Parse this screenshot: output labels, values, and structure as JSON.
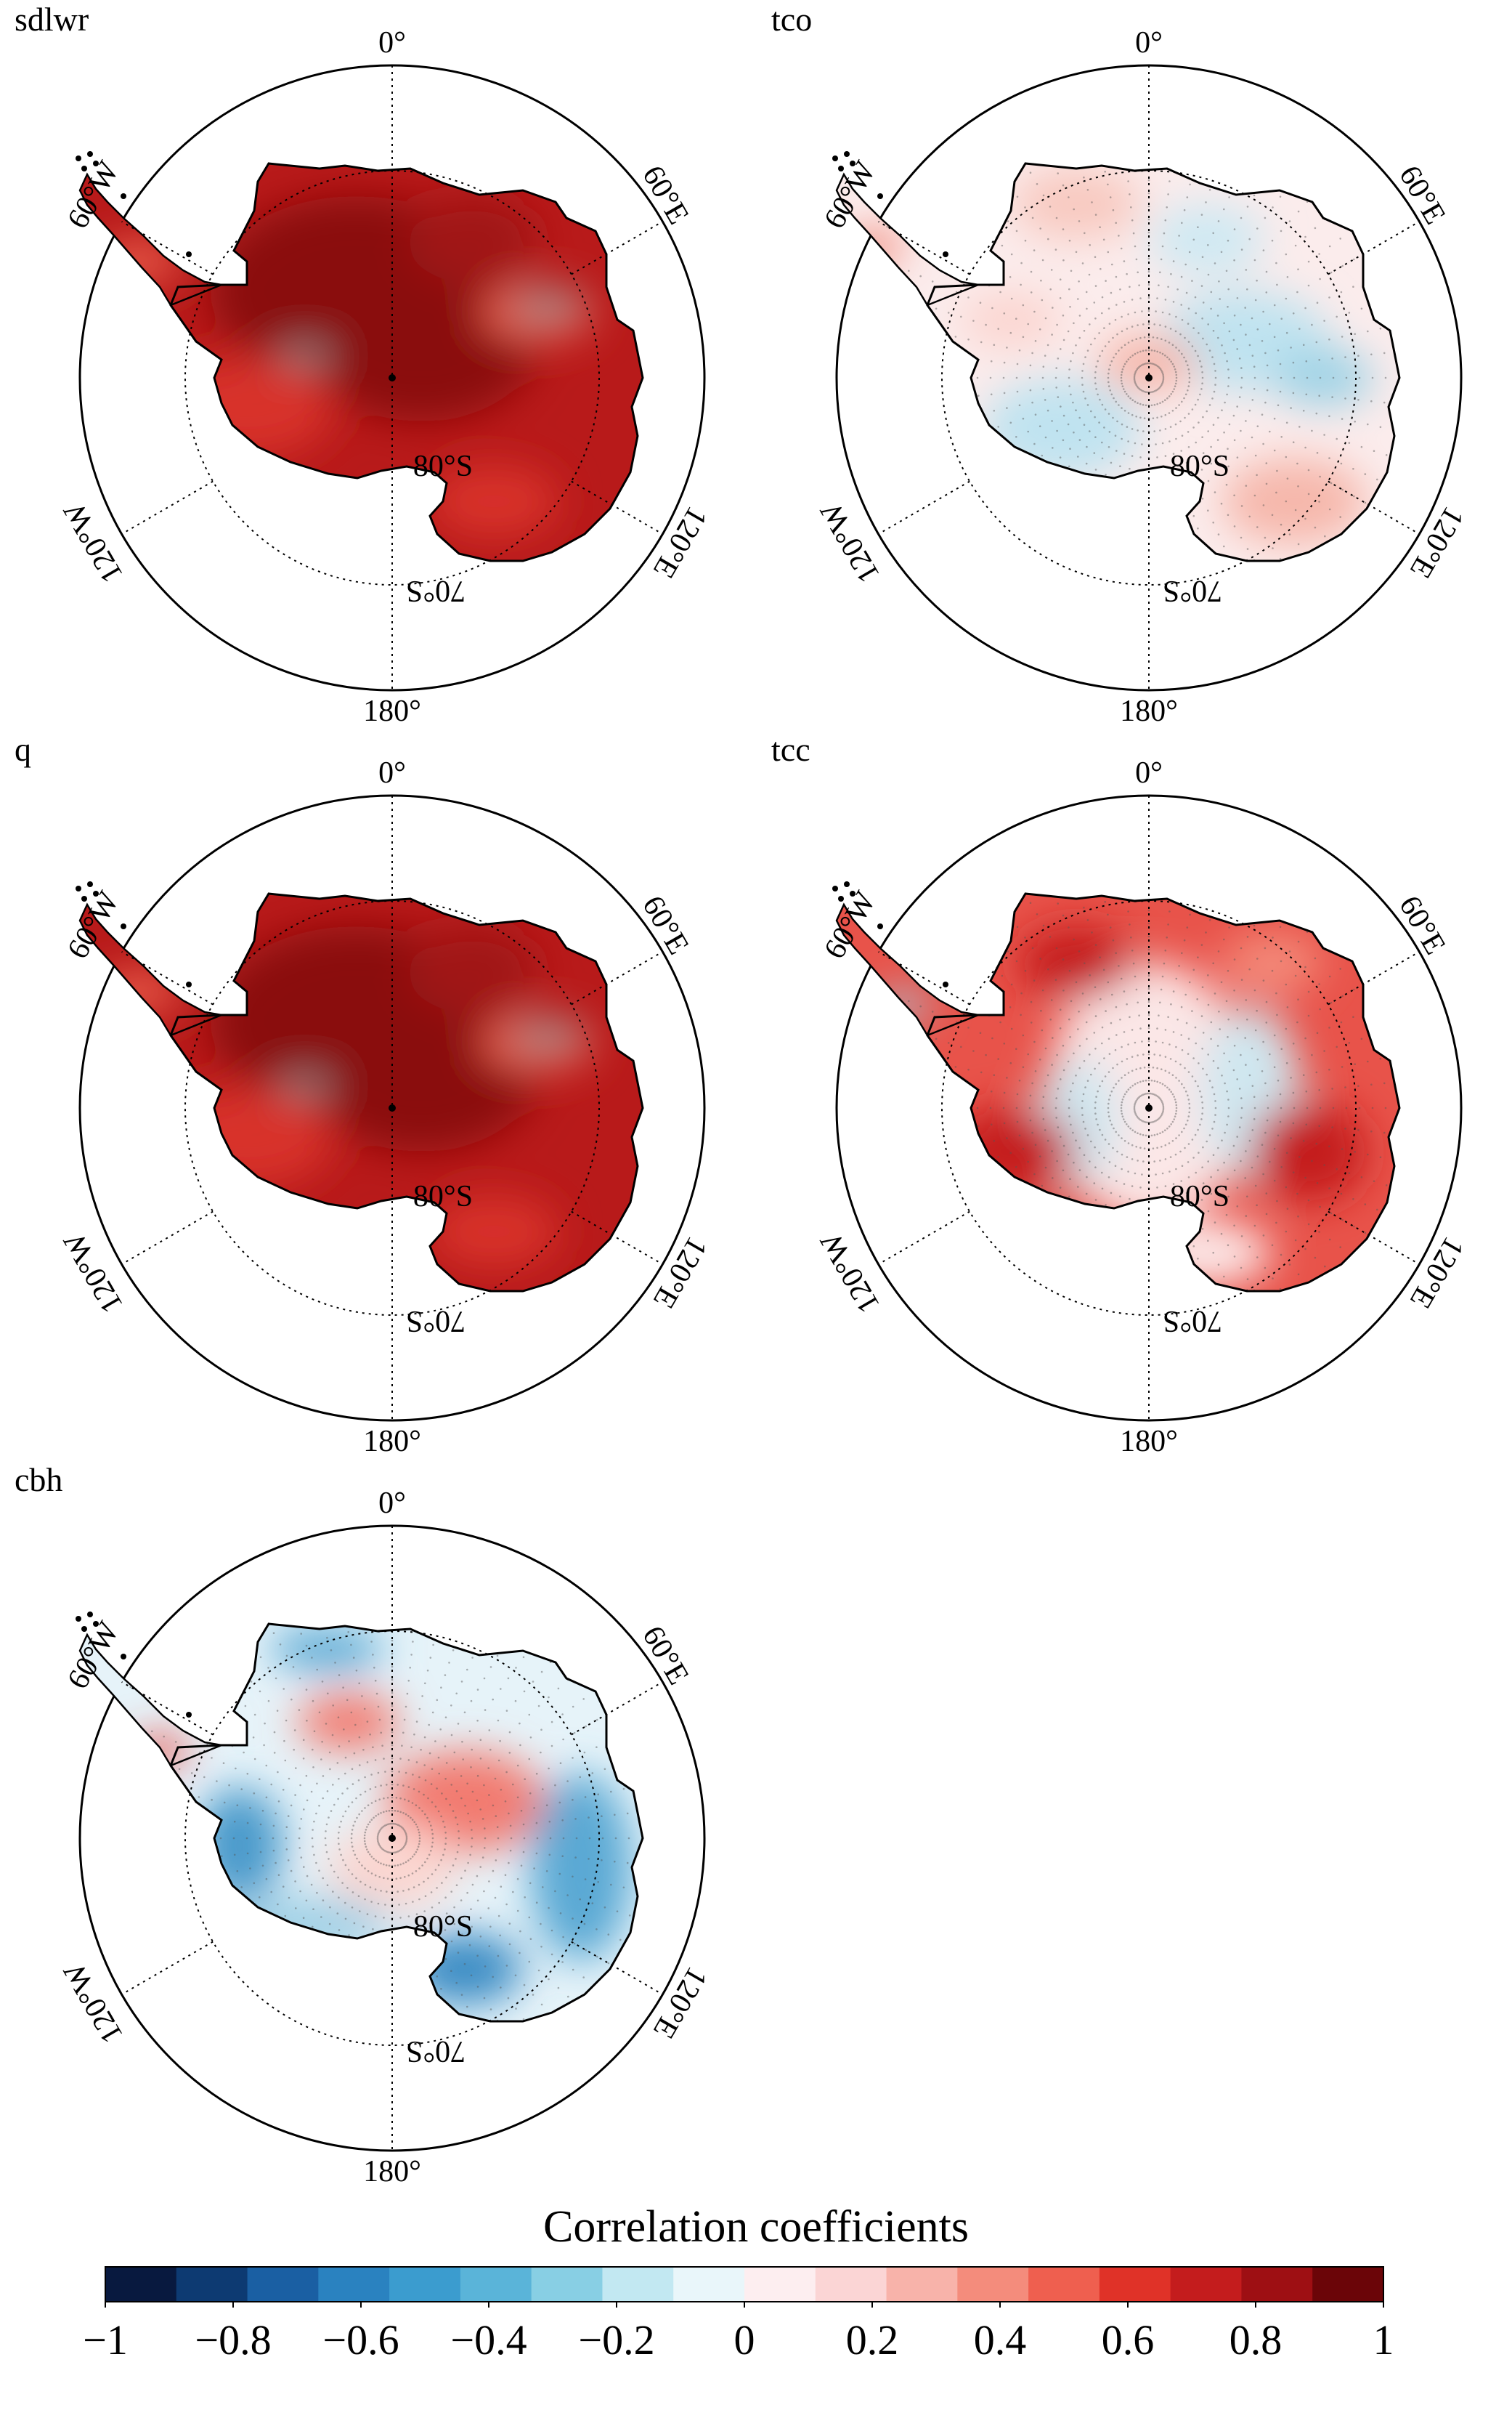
{
  "panels": [
    {
      "label": "sdlwr",
      "scheme": "strong-red"
    },
    {
      "label": "tco",
      "scheme": "weak-mixed"
    },
    {
      "label": "q",
      "scheme": "strong-red"
    },
    {
      "label": "tcc",
      "scheme": "red-patchy"
    },
    {
      "label": "cbh",
      "scheme": "blue-mixed"
    }
  ],
  "map_labels": {
    "lon_0": "0°",
    "lon_60e": "60°E",
    "lon_120e": "120°E",
    "lon_180": "180°",
    "lon_120w": "120°W",
    "lon_60w": "60°W",
    "lat_80s": "80°S",
    "lat_70s": "70°S"
  },
  "colorbar": {
    "title": "Correlation coefficients",
    "ticks": [
      "−1",
      "−0.8",
      "−0.6",
      "−0.4",
      "−0.2",
      "0",
      "0.2",
      "0.4",
      "0.6",
      "0.8",
      "1"
    ],
    "colors": [
      "#08193f",
      "#0d3a72",
      "#1a5fa3",
      "#2a82c0",
      "#3b9ccf",
      "#5ab4d9",
      "#88cfe4",
      "#c2e8f2",
      "#e9f6fa",
      "#fdeef0",
      "#fbd5d5",
      "#f8b3aa",
      "#f48c7c",
      "#ef5f4f",
      "#e03228",
      "#c41c1d",
      "#9e0f13",
      "#6b0508"
    ]
  }
}
